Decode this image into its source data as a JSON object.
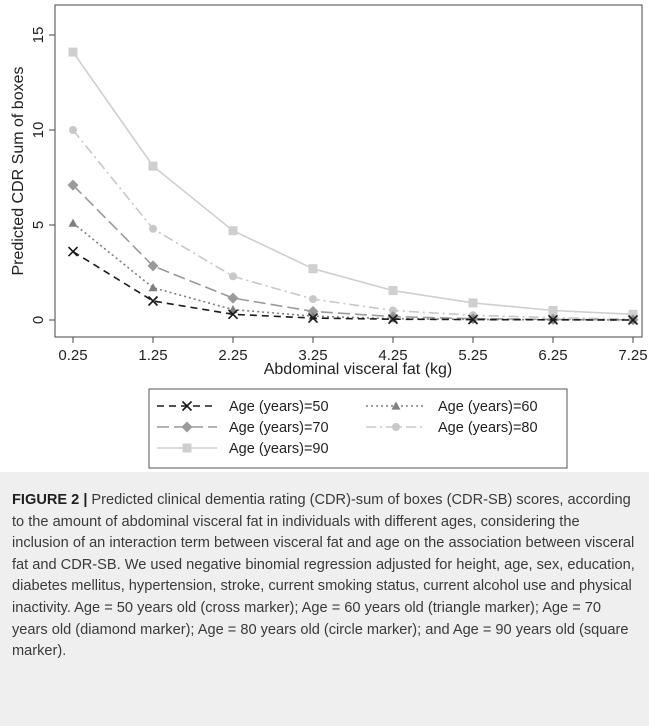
{
  "chart_data": {
    "type": "line",
    "title": "",
    "xlabel": "Abdominal visceral fat (kg)",
    "ylabel": "Predicted CDR Sum of boxes",
    "x": [
      0.25,
      1.25,
      2.25,
      3.25,
      4.25,
      5.25,
      6.25,
      7.25
    ],
    "x_tick_labels": [
      "0.25",
      "1.25",
      "2.25",
      "3.25",
      "4.25",
      "5.25",
      "6.25",
      "7.25"
    ],
    "y_ticks": [
      0,
      5,
      10,
      15
    ],
    "y_tick_labels": [
      "0",
      "5",
      "10",
      "15"
    ],
    "xlim": [
      0.25,
      7.25
    ],
    "ylim": [
      0,
      15
    ],
    "grid": false,
    "legend_position": "bottom",
    "series": [
      {
        "name": "Age (years)=50",
        "marker": "cross",
        "dash": "dashed",
        "color": "#1a1a1a",
        "values": [
          3.6,
          1.0,
          0.3,
          0.1,
          0.04,
          0.02,
          0.01,
          0.0
        ]
      },
      {
        "name": "Age (years)=60",
        "marker": "triangle",
        "dash": "dotted",
        "color": "#7f7f7f",
        "values": [
          5.1,
          1.7,
          0.55,
          0.2,
          0.07,
          0.03,
          0.01,
          0.0
        ]
      },
      {
        "name": "Age (years)=70",
        "marker": "diamond",
        "dash": "longdash",
        "color": "#9a9a9a",
        "values": [
          7.1,
          2.85,
          1.15,
          0.45,
          0.18,
          0.07,
          0.03,
          0.01
        ]
      },
      {
        "name": "Age (years)=80",
        "marker": "circle",
        "dash": "dashdot",
        "color": "#c8c8c8",
        "values": [
          10.0,
          4.8,
          2.3,
          1.1,
          0.5,
          0.25,
          0.12,
          0.05
        ]
      },
      {
        "name": "Age (years)=90",
        "marker": "square",
        "dash": "solid",
        "color": "#cfcfcf",
        "values": [
          14.1,
          8.1,
          4.7,
          2.7,
          1.55,
          0.9,
          0.5,
          0.3
        ]
      }
    ]
  },
  "caption": {
    "label": "FIGURE 2",
    "separator": "|",
    "text": "Predicted clinical dementia rating (CDR)-sum of boxes (CDR-SB) scores, according to the amount of abdominal visceral fat in individuals with different ages, considering the inclusion of an interaction term between visceral fat and age on the association between visceral fat and CDR-SB. We used negative binomial regression adjusted for height, age, sex, education, diabetes mellitus, hypertension, stroke, current smoking status, current alcohol use and physical inactivity. Age = 50 years old (cross marker); Age = 60 years old (triangle marker); Age = 70 years old (diamond marker); Age = 80 years old (circle marker); and Age = 90 years old (square marker)."
  }
}
